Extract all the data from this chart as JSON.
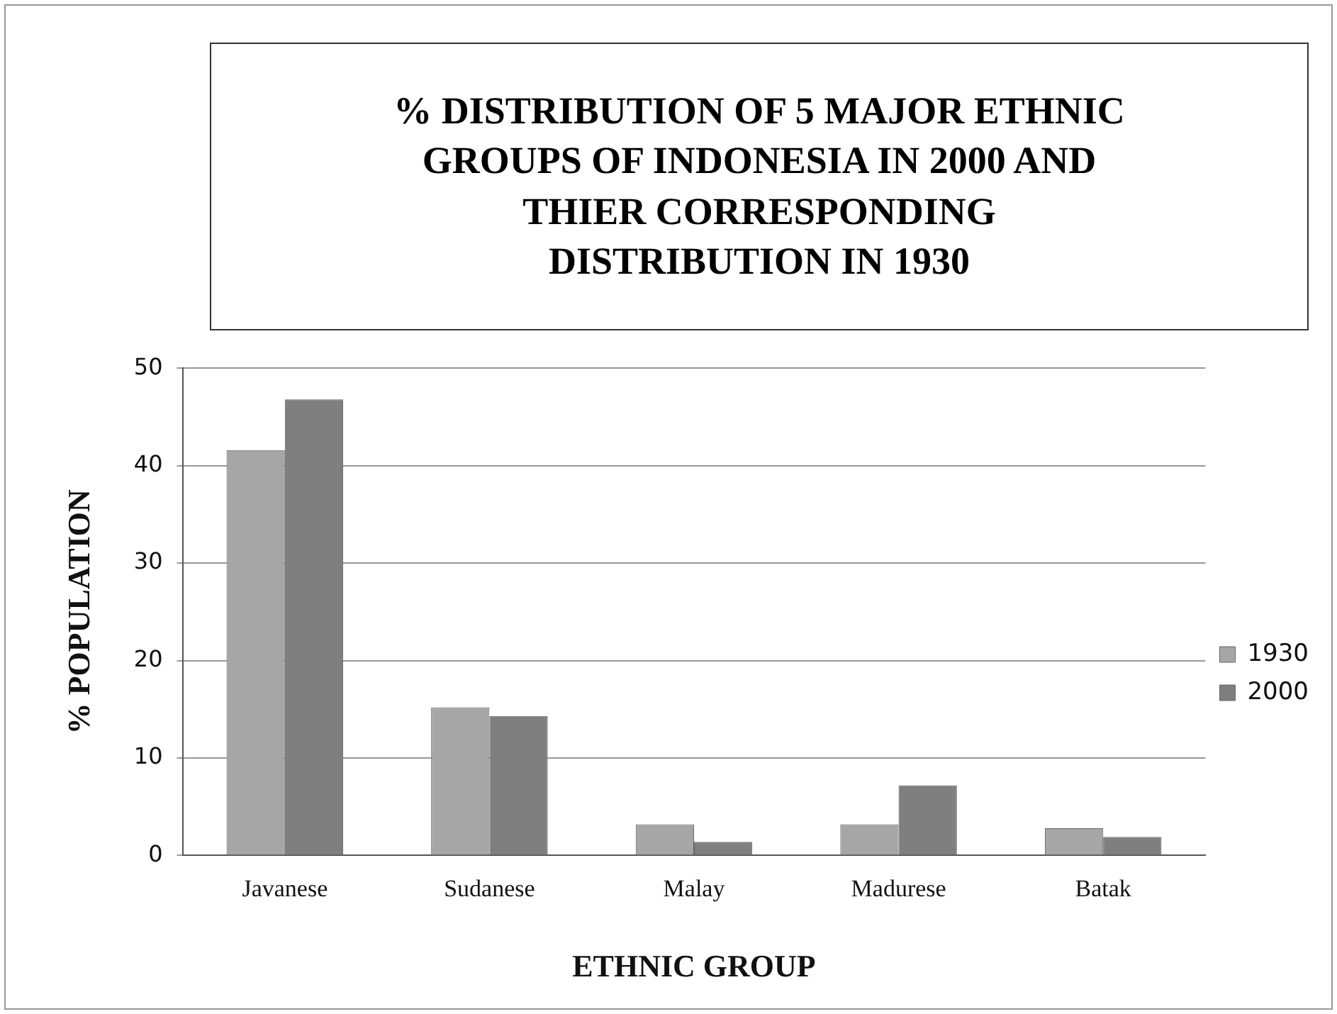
{
  "chart_data": {
    "type": "bar",
    "title": [
      "% DISTRIBUTION OF 5 MAJOR ETHNIC",
      "GROUPS  OF INDONESIA IN 2000 AND",
      "THIER CORRESPONDING",
      "DISTRIBUTION IN 1930"
    ],
    "xlabel": "ETHNIC GROUP",
    "ylabel": "% POPULATION",
    "categories": [
      "Javanese",
      "Sudanese",
      "Malay",
      "Madurese",
      "Batak"
    ],
    "series": [
      {
        "name": "1930",
        "color": "#a6a6a6",
        "values": [
          41.6,
          15.2,
          3.2,
          3.2,
          2.8
        ]
      },
      {
        "name": "2000",
        "color": "#7f7f7f",
        "values": [
          46.8,
          14.3,
          1.4,
          7.2,
          1.9
        ]
      }
    ],
    "ylim": [
      0,
      50
    ],
    "yticks": [
      0,
      10,
      20,
      30,
      40,
      50
    ],
    "grid": "y",
    "legend": "right"
  }
}
